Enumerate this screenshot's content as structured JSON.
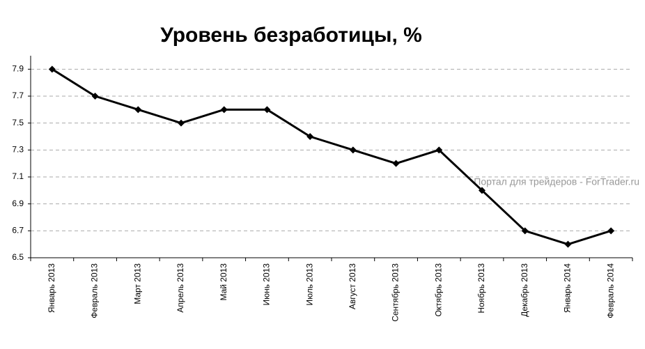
{
  "chart_data": {
    "type": "line",
    "title": "Уровень безработицы, %",
    "annotation": "Портал для трейдеров - ForTrader.ru",
    "categories": [
      "Январь 2013",
      "Февраль 2013",
      "Март 2013",
      "Апрель 2013",
      "Май 2013",
      "Июнь 2013",
      "Июль 2013",
      "Август 2013",
      "Сентябрь 2013",
      "Октябрь 2013",
      "Ноябрь 2013",
      "Декабрь 2013",
      "Январь 2014",
      "Февраль 2014"
    ],
    "values": [
      7.9,
      7.7,
      7.6,
      7.5,
      7.6,
      7.6,
      7.4,
      7.3,
      7.2,
      7.3,
      7.0,
      6.7,
      6.6,
      6.7
    ],
    "color": "#000000",
    "ylim": [
      6.5,
      8.0
    ],
    "yticks": [
      6.5,
      6.7,
      6.9,
      7.1,
      7.3,
      7.5,
      7.7,
      7.9
    ],
    "grid": true
  }
}
